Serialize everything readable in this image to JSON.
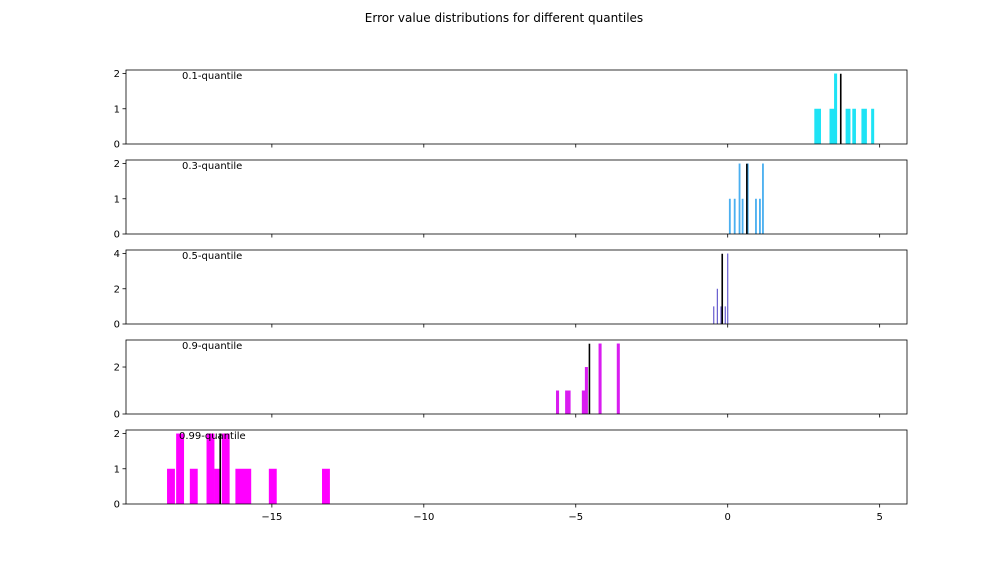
{
  "figure": {
    "suptitle": "Error value distributions for different quantiles"
  },
  "chart_data": [
    {
      "type": "bar",
      "label": "0.1-quantile",
      "color": "#1ee3f5",
      "xlim": [
        -19.8,
        5.9
      ],
      "ylim": [
        0,
        2.1
      ],
      "yticks": [
        0,
        1,
        2
      ],
      "marker": 3.72,
      "bars": [
        {
          "x": 2.85,
          "w": 0.22,
          "y": 1
        },
        {
          "x": 3.35,
          "w": 0.22,
          "y": 1
        },
        {
          "x": 3.5,
          "w": 0.1,
          "y": 2
        },
        {
          "x": 3.88,
          "w": 0.16,
          "y": 1
        },
        {
          "x": 4.1,
          "w": 0.12,
          "y": 1
        },
        {
          "x": 4.4,
          "w": 0.18,
          "y": 1
        },
        {
          "x": 4.72,
          "w": 0.1,
          "y": 1
        }
      ]
    },
    {
      "type": "bar",
      "label": "0.3-quantile",
      "color": "#4aaff0",
      "xlim": [
        -19.8,
        5.9
      ],
      "ylim": [
        0,
        2.1
      ],
      "yticks": [
        0,
        1,
        2
      ],
      "marker": 0.63,
      "bars": [
        {
          "x": 0.04,
          "w": 0.06,
          "y": 1
        },
        {
          "x": 0.2,
          "w": 0.06,
          "y": 1
        },
        {
          "x": 0.36,
          "w": 0.06,
          "y": 2
        },
        {
          "x": 0.46,
          "w": 0.06,
          "y": 1
        },
        {
          "x": 0.63,
          "w": 0.06,
          "y": 2
        },
        {
          "x": 0.9,
          "w": 0.06,
          "y": 1
        },
        {
          "x": 1.03,
          "w": 0.06,
          "y": 1
        },
        {
          "x": 1.13,
          "w": 0.06,
          "y": 2
        }
      ]
    },
    {
      "type": "bar",
      "label": "0.5-quantile",
      "color": "#6a5fcf",
      "xlim": [
        -19.8,
        5.9
      ],
      "ylim": [
        0,
        4.2
      ],
      "yticks": [
        0,
        2,
        4
      ],
      "marker": -0.18,
      "bars": [
        {
          "x": -0.48,
          "w": 0.04,
          "y": 1
        },
        {
          "x": -0.36,
          "w": 0.04,
          "y": 2
        },
        {
          "x": -0.24,
          "w": 0.04,
          "y": 1
        },
        {
          "x": -0.1,
          "w": 0.04,
          "y": 1
        },
        {
          "x": -0.02,
          "w": 0.04,
          "y": 4
        }
      ]
    },
    {
      "type": "bar",
      "label": "0.9-quantile",
      "color": "#d91cf0",
      "xlim": [
        -19.8,
        5.9
      ],
      "ylim": [
        0,
        3.15
      ],
      "yticks": [
        0,
        2
      ],
      "marker": -4.55,
      "bars": [
        {
          "x": -5.65,
          "w": 0.1,
          "y": 1
        },
        {
          "x": -5.35,
          "w": 0.18,
          "y": 1
        },
        {
          "x": -4.8,
          "w": 0.12,
          "y": 1
        },
        {
          "x": -4.7,
          "w": 0.1,
          "y": 2
        },
        {
          "x": -4.25,
          "w": 0.1,
          "y": 3
        },
        {
          "x": -3.65,
          "w": 0.1,
          "y": 3
        }
      ]
    },
    {
      "type": "bar",
      "label": "0.99-quantile",
      "color": "#ff00ff",
      "xlim": [
        -19.8,
        5.9
      ],
      "ylim": [
        0,
        2.1
      ],
      "yticks": [
        0,
        1,
        2
      ],
      "marker": -16.7,
      "xticks": [
        -15,
        -10,
        -5,
        0,
        5
      ],
      "xtick_labels": [
        "−15",
        "−10",
        "−5",
        "0",
        "5"
      ],
      "bars": [
        {
          "x": -18.45,
          "w": 0.26,
          "y": 1
        },
        {
          "x": -18.15,
          "w": 0.26,
          "y": 2
        },
        {
          "x": -17.7,
          "w": 0.26,
          "y": 1
        },
        {
          "x": -17.15,
          "w": 0.26,
          "y": 2
        },
        {
          "x": -16.9,
          "w": 0.22,
          "y": 1
        },
        {
          "x": -16.65,
          "w": 0.26,
          "y": 2
        },
        {
          "x": -16.2,
          "w": 0.52,
          "y": 1
        },
        {
          "x": -15.1,
          "w": 0.26,
          "y": 1
        },
        {
          "x": -13.35,
          "w": 0.26,
          "y": 1
        }
      ]
    }
  ]
}
